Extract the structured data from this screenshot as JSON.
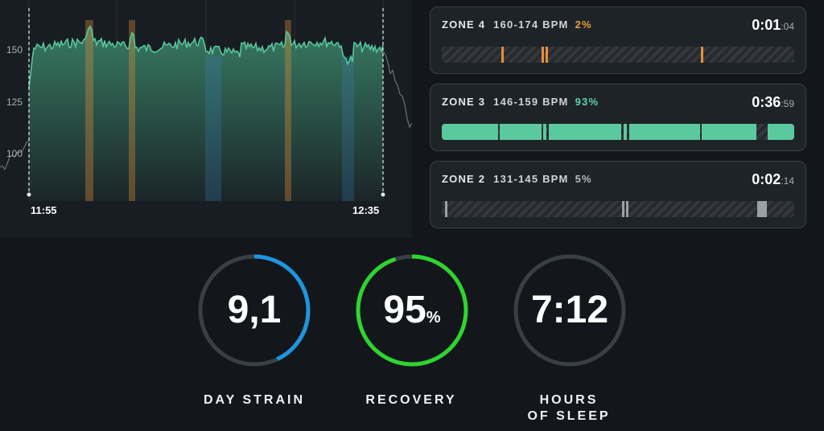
{
  "chart": {
    "y_ticks": [
      "150",
      "125",
      "100"
    ],
    "start_time": "11:55",
    "end_time": "12:35",
    "colors": {
      "line": "#58c79c",
      "zone4": "#e58f3a",
      "zone2": "#3b7fc4"
    }
  },
  "zones": [
    {
      "name": "ZONE 4",
      "range": "160-174 BPM",
      "percent": "2%",
      "percent_color": "#e8a040",
      "time_main": "0:01",
      "time_sec": ":04",
      "color": "#e58f3a"
    },
    {
      "name": "ZONE 3",
      "range": "146-159 BPM",
      "percent": "93%",
      "percent_color": "#5fd1a4",
      "time_main": "0:36",
      "time_sec": ":59",
      "color": "#5bc99e"
    },
    {
      "name": "ZONE 2",
      "range": "131-145 BPM",
      "percent": "5%",
      "percent_color": "#b8bdc2",
      "time_main": "0:02",
      "time_sec": ":14",
      "color": "#9aa0a5"
    }
  ],
  "stats": {
    "strain": {
      "value": "9,1",
      "label": "DAY STRAIN",
      "progress": 0.43,
      "color": "#1f95e0"
    },
    "recovery": {
      "value": "95",
      "unit": "%",
      "label": "RECOVERY",
      "progress": 0.95,
      "color": "#2fd42f"
    },
    "sleep": {
      "value": "7:12",
      "label_line1": "HOURS",
      "label_line2": "OF SLEEP",
      "color": "#3a3f44"
    }
  }
}
